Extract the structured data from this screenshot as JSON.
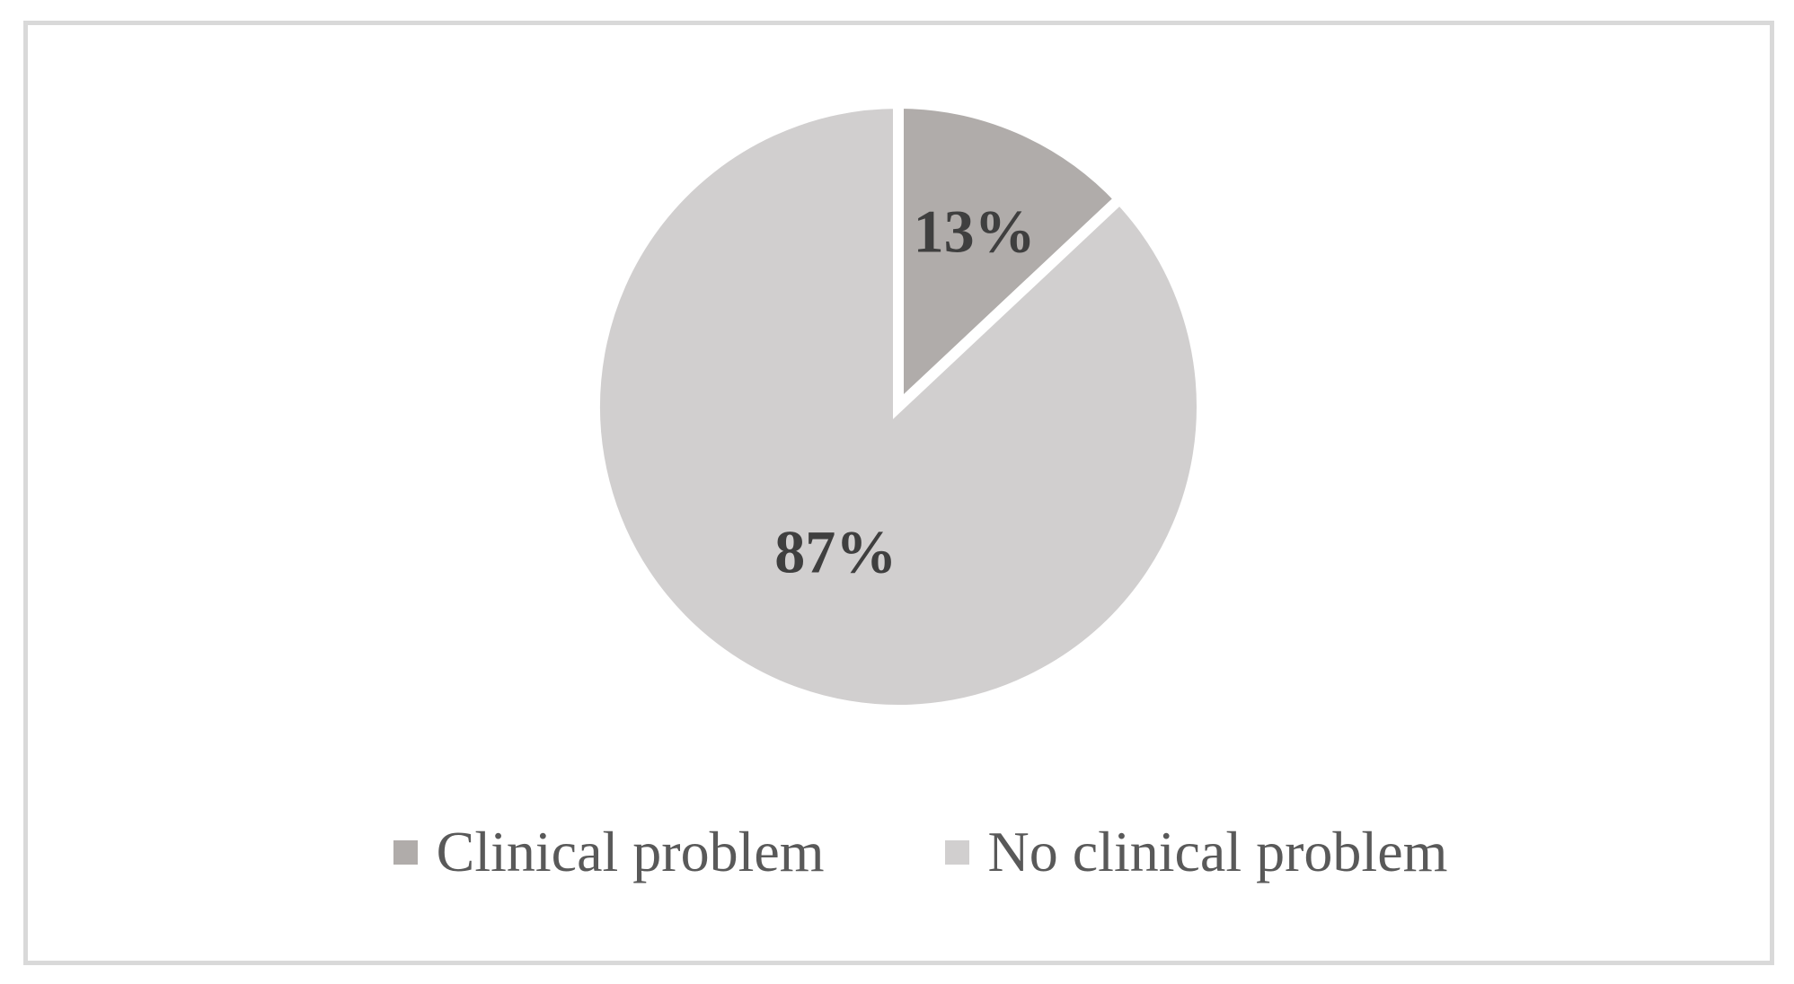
{
  "figure": {
    "background_color": "#ffffff",
    "frame_border_color": "#d9d9d9"
  },
  "chart_data": {
    "type": "pie",
    "title": "",
    "categories": [
      "Clinical problem",
      "No clinical problem"
    ],
    "values": [
      13,
      87
    ],
    "data_labels": [
      "13%",
      "87%"
    ],
    "colors": [
      "#b0acaa",
      "#d1cfcf"
    ],
    "data_label_color": "#3f3f3f",
    "slice_separator_color": "#ffffff",
    "start_angle_deg": 0,
    "direction": "clockwise-from-top",
    "legend_position": "bottom",
    "legend_text_color": "#595959"
  }
}
